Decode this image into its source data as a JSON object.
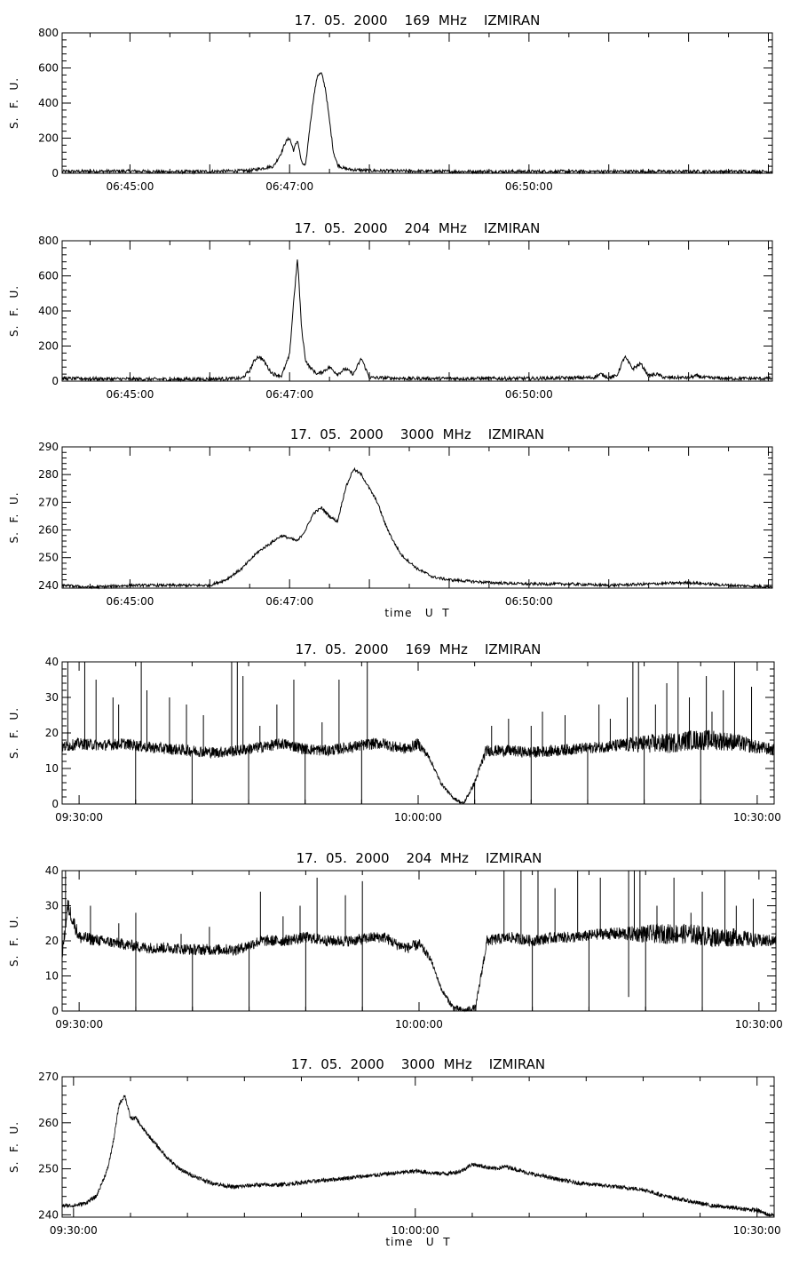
{
  "chart_data": [
    {
      "type": "line",
      "title": "17.  05.  2000    169  MHz    IZMIRAN",
      "ylabel": "S.  F.  U.",
      "xlabel": "",
      "ylim": [
        0,
        800
      ],
      "yticks": [
        "0",
        "200",
        "400",
        "600",
        "800"
      ],
      "xticks": [
        "06:45:00",
        "06:47:00",
        "06:50:00"
      ],
      "series": [
        {
          "x_minutes": [
            -0.85,
            0.0,
            0.5,
            1.0,
            1.5,
            1.8,
            1.9,
            1.95,
            2.0,
            2.05,
            2.1,
            2.15,
            2.2,
            2.25,
            2.3,
            2.35,
            2.4,
            2.45,
            2.5,
            2.55,
            2.6,
            2.65,
            2.7,
            2.8,
            3.0,
            3.5,
            4.0,
            5.0,
            6.0,
            7.0,
            7.5,
            8.05
          ],
          "values": [
            10,
            12,
            8,
            10,
            15,
            40,
            120,
            180,
            200,
            130,
            190,
            60,
            40,
            250,
            430,
            560,
            570,
            480,
            300,
            120,
            50,
            35,
            25,
            20,
            15,
            12,
            10,
            10,
            10,
            10,
            10,
            10
          ],
          "noise": 9
        }
      ]
    },
    {
      "type": "line",
      "title": "17.  05.  2000    204  MHz    IZMIRAN",
      "ylabel": "S.  F.  U.",
      "xlabel": "",
      "ylim": [
        0,
        800
      ],
      "yticks": [
        "0",
        "200",
        "400",
        "600",
        "800"
      ],
      "xticks": [
        "06:45:00",
        "06:47:00",
        "06:50:00"
      ],
      "series": [
        {
          "x_minutes": [
            -0.85,
            0.0,
            0.5,
            1.0,
            1.4,
            1.5,
            1.55,
            1.6,
            1.65,
            1.7,
            1.75,
            1.8,
            1.9,
            2.0,
            2.05,
            2.1,
            2.15,
            2.2,
            2.25,
            2.3,
            2.35,
            2.4,
            2.5,
            2.6,
            2.7,
            2.8,
            2.9,
            3.0,
            3.5,
            4.0,
            5.0,
            5.8,
            5.9,
            6.0,
            6.1,
            6.2,
            6.3,
            6.4,
            6.5,
            6.6,
            6.7,
            7.0,
            7.1,
            7.2,
            7.5,
            8.05
          ],
          "values": [
            15,
            12,
            10,
            12,
            15,
            60,
            110,
            140,
            130,
            100,
            60,
            40,
            30,
            150,
            450,
            700,
            300,
            120,
            80,
            60,
            40,
            50,
            80,
            40,
            70,
            40,
            130,
            20,
            15,
            15,
            15,
            20,
            40,
            20,
            30,
            140,
            70,
            100,
            30,
            40,
            20,
            20,
            30,
            20,
            15,
            15
          ],
          "noise": 10
        }
      ]
    },
    {
      "type": "line",
      "title": "17.  05.  2000    3000  MHz    IZMIRAN",
      "ylabel": "S.  F.  U.",
      "xlabel": "time   U  T",
      "ylim": [
        239,
        290
      ],
      "yticks": [
        "240",
        "250",
        "260",
        "270",
        "280",
        "290"
      ],
      "xticks": [
        "06:45:00",
        "06:47:00",
        "06:50:00"
      ],
      "series": [
        {
          "x_minutes": [
            -0.85,
            -0.5,
            0.0,
            0.5,
            1.0,
            1.2,
            1.4,
            1.6,
            1.8,
            1.9,
            2.0,
            2.1,
            2.2,
            2.3,
            2.4,
            2.5,
            2.6,
            2.7,
            2.8,
            2.9,
            3.0,
            3.1,
            3.2,
            3.3,
            3.4,
            3.6,
            3.8,
            4.0,
            4.5,
            5.0,
            5.5,
            6.0,
            6.5,
            7.0,
            7.5,
            8.05
          ],
          "values": [
            240,
            239.3,
            240,
            240,
            240,
            242,
            246,
            252,
            256,
            258,
            257,
            256,
            260,
            266,
            268,
            265,
            263,
            275,
            282,
            280,
            275,
            270,
            262,
            256,
            251,
            246,
            243,
            242,
            241,
            240.5,
            240.5,
            240,
            240.5,
            241,
            240,
            239.5
          ],
          "noise": 0.5
        }
      ]
    },
    {
      "type": "line",
      "title": "17.  05.  2000    169  MHz    IZMIRAN",
      "ylabel": "S.  F.  U.",
      "xlabel": "",
      "ylim": [
        0,
        40
      ],
      "yticks": [
        "0",
        "10",
        "20",
        "30",
        "40"
      ],
      "xticks": [
        "09:30:00",
        "10:00:00",
        "10:30:00"
      ],
      "series": [
        {
          "x_minutes": [
            -1.5,
            0,
            2,
            4,
            6,
            8,
            10,
            12,
            14,
            16,
            18,
            20,
            22,
            24,
            26,
            27,
            28,
            29,
            30,
            31,
            32,
            33,
            34,
            35,
            36,
            38,
            40,
            42,
            44,
            46,
            48,
            50,
            52,
            54,
            56,
            58,
            60,
            62
          ],
          "values": [
            16,
            17,
            16.5,
            17,
            16,
            15.5,
            15,
            14.5,
            15,
            16,
            17,
            15.5,
            15,
            16,
            17,
            17,
            16,
            15.5,
            17,
            13,
            6,
            2,
            0,
            6,
            15,
            15,
            14.5,
            15,
            15.5,
            16,
            16.5,
            17,
            17,
            18,
            18,
            17.5,
            16,
            15
          ],
          "noise": 1.6,
          "spike_minutes": [
            -1,
            0.5,
            1.5,
            3,
            3.5,
            5.5,
            6,
            8,
            9.5,
            11,
            13.5,
            14,
            14.5,
            16,
            17.5,
            19,
            21.5,
            23,
            25.5,
            36.5,
            38,
            40,
            41,
            43,
            46,
            47,
            48.5,
            49,
            49.5,
            51,
            52,
            53,
            54,
            55.5,
            56,
            57,
            58,
            59.5
          ],
          "spike_values": [
            40,
            40,
            35,
            30,
            28,
            40,
            32,
            30,
            28,
            25,
            40,
            40,
            36,
            22,
            28,
            35,
            23,
            35,
            40,
            22,
            24,
            22,
            26,
            25,
            28,
            24,
            30,
            40,
            40,
            28,
            34,
            40,
            30,
            36,
            26,
            32,
            40,
            33
          ],
          "dip_minutes": [
            5,
            10,
            15,
            20,
            25,
            35,
            40,
            45,
            50,
            55
          ],
          "noise_scale": [
            1,
            1,
            1,
            1,
            1,
            1,
            1,
            1,
            1,
            1,
            1,
            1,
            1,
            1,
            1,
            1,
            1,
            1,
            1,
            0.5,
            0.3,
            0.3,
            0.3,
            0.5,
            1,
            1,
            1,
            1,
            1,
            1,
            1.2,
            1.6,
            1.8,
            1.8,
            1.8,
            1.6,
            1.2,
            1
          ]
        }
      ]
    },
    {
      "type": "line",
      "title": "17.  05.  2000    204  MHz    IZMIRAN",
      "ylabel": "S.  F.  U.",
      "xlabel": "",
      "ylim": [
        0,
        40
      ],
      "yticks": [
        "0",
        "10",
        "20",
        "30",
        "40"
      ],
      "xticks": [
        "09:30:00",
        "10:00:00",
        "10:30:00"
      ],
      "series": [
        {
          "x_minutes": [
            -1.5,
            -1,
            0,
            2,
            4,
            6,
            8,
            10,
            12,
            14,
            16,
            18,
            20,
            22,
            24,
            26,
            27,
            28,
            29,
            30,
            31,
            32,
            33,
            34,
            35,
            36,
            38,
            40,
            42,
            44,
            46,
            48,
            50,
            52,
            54,
            56,
            58,
            60,
            62
          ],
          "values": [
            16,
            30,
            21,
            20,
            19,
            18,
            18,
            17.5,
            17.5,
            17.5,
            20,
            20,
            21,
            20,
            20,
            21,
            21,
            19,
            18,
            19,
            15,
            6,
            1,
            0,
            1,
            20,
            21,
            20,
            21,
            21,
            22,
            22,
            22,
            22,
            22,
            21,
            21,
            20,
            20
          ],
          "noise": 1.6,
          "spike_minutes": [
            -1.2,
            1,
            3.5,
            5,
            9,
            11.5,
            16,
            18,
            19.5,
            21,
            23.5,
            25,
            37.5,
            39,
            40.5,
            42,
            44,
            46,
            48.5,
            49,
            49.5,
            51,
            52.5,
            54,
            55,
            57,
            58,
            59.5
          ],
          "spike_values": [
            40,
            30,
            25,
            28,
            22,
            24,
            34,
            27,
            30,
            38,
            33,
            37,
            40,
            40,
            40,
            35,
            40,
            38,
            40,
            40,
            40,
            30,
            38,
            28,
            34,
            40,
            30,
            32
          ],
          "dip_minutes": [
            5,
            10,
            15,
            20,
            25,
            35,
            40,
            45,
            50,
            55
          ],
          "deep_dip_minute": 48.5,
          "noise_scale": [
            1,
            1.5,
            1.2,
            1,
            1,
            1,
            1,
            1,
            1,
            1,
            1,
            1,
            1,
            1,
            1,
            1,
            1,
            1,
            1,
            1,
            0.5,
            0.4,
            0.6,
            0.6,
            0.6,
            1,
            1,
            1,
            1,
            1,
            1,
            1.2,
            1.6,
            1.8,
            1.8,
            1.8,
            1.6,
            1.2,
            1
          ]
        }
      ]
    },
    {
      "type": "line",
      "title": "17.  05.  2000    3000  MHz    IZMIRAN",
      "ylabel": "S.  F.  U.",
      "xlabel": "time   U  T",
      "ylim": [
        239.5,
        270
      ],
      "yticks": [
        "240",
        "250",
        "260",
        "270"
      ],
      "xticks": [
        "09:30:00",
        "10:00:00",
        "10:30:00"
      ],
      "series": [
        {
          "x_minutes": [
            -1,
            0,
            1,
            2,
            3,
            3.5,
            4,
            4.5,
            5,
            5.5,
            6,
            7,
            8,
            9,
            10,
            11,
            12,
            14,
            16,
            18,
            20,
            22,
            24,
            26,
            28,
            30,
            32,
            33,
            34,
            35,
            36,
            37,
            38,
            40,
            42,
            44,
            46,
            48,
            50,
            52,
            54,
            56,
            58,
            60,
            61
          ],
          "values": [
            242,
            242,
            242.5,
            244,
            250,
            256,
            264,
            266,
            261,
            261,
            259,
            256,
            253,
            250.5,
            249,
            248,
            247,
            246,
            246.5,
            246.5,
            247,
            247.5,
            248,
            248.5,
            249,
            249.5,
            249,
            249,
            249.5,
            251,
            250.5,
            250,
            250.5,
            249,
            248,
            247,
            246.5,
            246,
            245.5,
            244,
            243,
            242,
            241.5,
            241,
            240
          ],
          "noise": 0.45
        }
      ]
    }
  ]
}
